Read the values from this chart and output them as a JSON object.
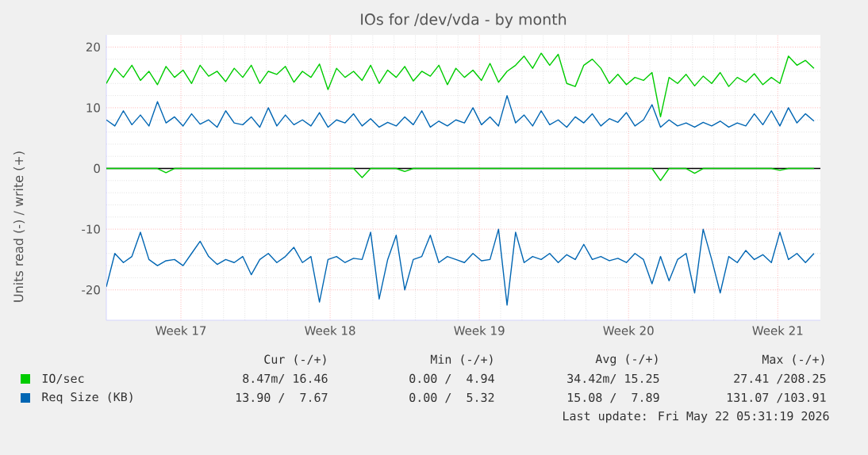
{
  "chart_data": {
    "type": "line",
    "title": "IOs for /dev/vda - by month",
    "ylabel": "Units read (-) / write (+)",
    "x": [
      "2026-04-20T00:00",
      "2026-04-20T09:36",
      "2026-04-20T19:12",
      "2026-04-21T04:48",
      "2026-04-21T14:24",
      "2026-04-22T00:00",
      "2026-04-22T09:36",
      "2026-04-22T19:12",
      "2026-04-23T04:48",
      "2026-04-23T14:24",
      "2026-04-24T00:00",
      "2026-04-24T09:36",
      "2026-04-24T19:12",
      "2026-04-25T04:48",
      "2026-04-25T14:24",
      "2026-04-26T00:00",
      "2026-04-26T09:36",
      "2026-04-26T19:12",
      "2026-04-27T04:48",
      "2026-04-27T14:24",
      "2026-04-28T00:00",
      "2026-04-28T09:36",
      "2026-04-28T19:12",
      "2026-04-29T04:48",
      "2026-04-29T14:24",
      "2026-04-30T00:00",
      "2026-04-30T09:36",
      "2026-04-30T19:12",
      "2026-05-01T04:48",
      "2026-05-01T14:24",
      "2026-05-02T00:00",
      "2026-05-02T09:36",
      "2026-05-02T19:12",
      "2026-05-03T04:48",
      "2026-05-03T14:24",
      "2026-05-04T00:00",
      "2026-05-04T09:36",
      "2026-05-04T19:12",
      "2026-05-05T04:48",
      "2026-05-05T14:24",
      "2026-05-06T00:00",
      "2026-05-06T09:36",
      "2026-05-06T19:12",
      "2026-05-07T04:48",
      "2026-05-07T14:24",
      "2026-05-08T00:00",
      "2026-05-08T09:36",
      "2026-05-08T19:12",
      "2026-05-09T04:48",
      "2026-05-09T14:24",
      "2026-05-10T00:00",
      "2026-05-10T09:36",
      "2026-05-10T19:12",
      "2026-05-11T04:48",
      "2026-05-11T14:24",
      "2026-05-12T00:00",
      "2026-05-12T09:36",
      "2026-05-12T19:12",
      "2026-05-13T04:48",
      "2026-05-13T14:24",
      "2026-05-14T00:00",
      "2026-05-14T09:36",
      "2026-05-14T19:12",
      "2026-05-15T04:48",
      "2026-05-15T14:24",
      "2026-05-16T00:00",
      "2026-05-16T09:36",
      "2026-05-16T19:12",
      "2026-05-17T04:48",
      "2026-05-17T14:24",
      "2026-05-18T00:00",
      "2026-05-18T09:36",
      "2026-05-18T19:12",
      "2026-05-19T04:48",
      "2026-05-19T14:24",
      "2026-05-20T00:00",
      "2026-05-20T09:36",
      "2026-05-20T19:12",
      "2026-05-21T04:48",
      "2026-05-21T14:24",
      "2026-05-22T00:00",
      "2026-05-22T09:36",
      "2026-05-22T19:12",
      "2026-05-23T04:48"
    ],
    "series": [
      {
        "name": "IO/sec",
        "color": "#00cc00",
        "values": [
          14,
          16.5,
          15,
          17,
          14.5,
          16,
          13.8,
          16.8,
          15,
          16.2,
          14,
          17,
          15.2,
          16,
          14.3,
          16.5,
          15,
          17,
          14,
          16,
          15.5,
          16.8,
          14.2,
          16,
          15,
          17.2,
          13,
          16.5,
          15,
          16,
          14.5,
          17,
          14,
          16.2,
          15,
          16.8,
          14.4,
          16,
          15.2,
          17,
          13.8,
          16.5,
          15,
          16.2,
          14.5,
          17.3,
          14.2,
          16,
          17,
          18.5,
          16.5,
          19,
          17,
          18.8,
          14,
          13.5,
          17,
          18,
          16.5,
          14,
          15.5,
          13.8,
          15,
          14.5,
          15.8,
          8.5,
          15,
          14,
          15.5,
          13.6,
          15.2,
          14,
          15.8,
          13.5,
          15,
          14.2,
          15.6,
          13.8,
          15,
          14,
          18.5,
          17,
          17.8,
          16.5
        ]
      },
      {
        "color": "#00cc00",
        "values": [
          0,
          0,
          0,
          0,
          0,
          0,
          0,
          -0.7,
          0,
          0,
          0,
          0,
          0,
          0,
          0,
          0,
          0,
          0,
          0,
          0,
          0,
          0,
          0,
          0,
          0,
          0,
          0,
          0,
          0,
          0,
          -1.5,
          0,
          0,
          0,
          0,
          -0.5,
          0,
          0,
          0,
          0,
          0,
          0,
          0,
          0,
          0,
          0,
          0,
          0,
          0,
          0,
          0,
          0,
          0,
          0,
          0,
          0,
          0,
          0,
          0,
          0,
          0,
          0,
          0,
          0,
          0,
          -2,
          0,
          0,
          0,
          -0.8,
          0,
          0,
          0,
          0,
          0,
          0,
          0,
          0,
          0,
          -0.3,
          0,
          0,
          0,
          0
        ]
      },
      {
        "name": "Req Size (KB)",
        "color": "#0066b3",
        "values": [
          8,
          7,
          9.5,
          7.2,
          8.8,
          7,
          11,
          7.5,
          8.5,
          7,
          9,
          7.3,
          8,
          6.8,
          9.5,
          7.5,
          7.2,
          8.5,
          6.8,
          10,
          7,
          8.8,
          7.2,
          8,
          7,
          9.2,
          6.8,
          8,
          7.5,
          9,
          7,
          8.2,
          6.8,
          7.6,
          7,
          8.5,
          7.2,
          9.5,
          6.8,
          7.8,
          7,
          8,
          7.5,
          10,
          7.2,
          8.5,
          7,
          12,
          7.5,
          8.8,
          7,
          9.5,
          7.2,
          8,
          6.8,
          8.5,
          7.5,
          9,
          7,
          8.2,
          7.6,
          9.2,
          7,
          8,
          10.5,
          6.8,
          8,
          7,
          7.5,
          6.8,
          7.6,
          7,
          7.8,
          6.8,
          7.5,
          7,
          9,
          7.2,
          9.5,
          7,
          10,
          7.5,
          9,
          7.8
        ]
      },
      {
        "color": "#0066b3",
        "values": [
          -19.5,
          -14,
          -15.5,
          -14.5,
          -10.5,
          -15,
          -16,
          -15.2,
          -15,
          -16,
          -14,
          -12,
          -14.5,
          -15.8,
          -15,
          -15.5,
          -14.5,
          -17.5,
          -15,
          -14,
          -15.5,
          -14.5,
          -13,
          -15.5,
          -14.5,
          -22,
          -15,
          -14.5,
          -15.5,
          -14.8,
          -15,
          -10.5,
          -21.5,
          -15,
          -11,
          -20,
          -15,
          -14.5,
          -11,
          -15.5,
          -14.5,
          -15,
          -15.5,
          -14,
          -15.2,
          -15,
          -10,
          -22.5,
          -10.5,
          -15.5,
          -14.5,
          -15,
          -14,
          -15.5,
          -14.2,
          -15,
          -12.5,
          -15,
          -14.5,
          -15.2,
          -14.8,
          -15.5,
          -14,
          -15,
          -19,
          -14.5,
          -18.5,
          -15,
          -14,
          -20.5,
          -10,
          -15,
          -20.5,
          -14.5,
          -15.5,
          -13.5,
          -15,
          -14.2,
          -15.5,
          -10.5,
          -15,
          -14,
          -15.5,
          -14
        ]
      }
    ],
    "xlim": [
      "2026-04-20T00:00",
      "2026-05-23T12:00"
    ],
    "xticks": [
      {
        "value": "2026-04-23T12:00",
        "label": "Week 17"
      },
      {
        "value": "2026-04-30T12:00",
        "label": "Week 18"
      },
      {
        "value": "2026-05-07T12:00",
        "label": "Week 19"
      },
      {
        "value": "2026-05-14T12:00",
        "label": "Week 20"
      },
      {
        "value": "2026-05-21T12:00",
        "label": "Week 21"
      }
    ],
    "ylim": [
      -25,
      22
    ],
    "yticks": [
      -20,
      -10,
      0,
      10,
      20
    ],
    "ref_lines": [
      {
        "axis": "y",
        "value": 0,
        "color": "#000000"
      }
    ],
    "grid": true,
    "legend": "bottom",
    "annotations": [
      "Cur (-/+)",
      "Min (-/+)",
      "Avg (-/+)",
      "Max (-/+)",
      "8.47m/ 16.46",
      "0.00 /  4.94",
      "34.42m/ 15.25",
      "27.41 /208.25",
      "13.90 /  7.67",
      "0.00 /  5.32",
      "15.08 /  7.89",
      "131.07 /103.91",
      "Last update: Fri May 22 05:31:19 2026"
    ]
  }
}
